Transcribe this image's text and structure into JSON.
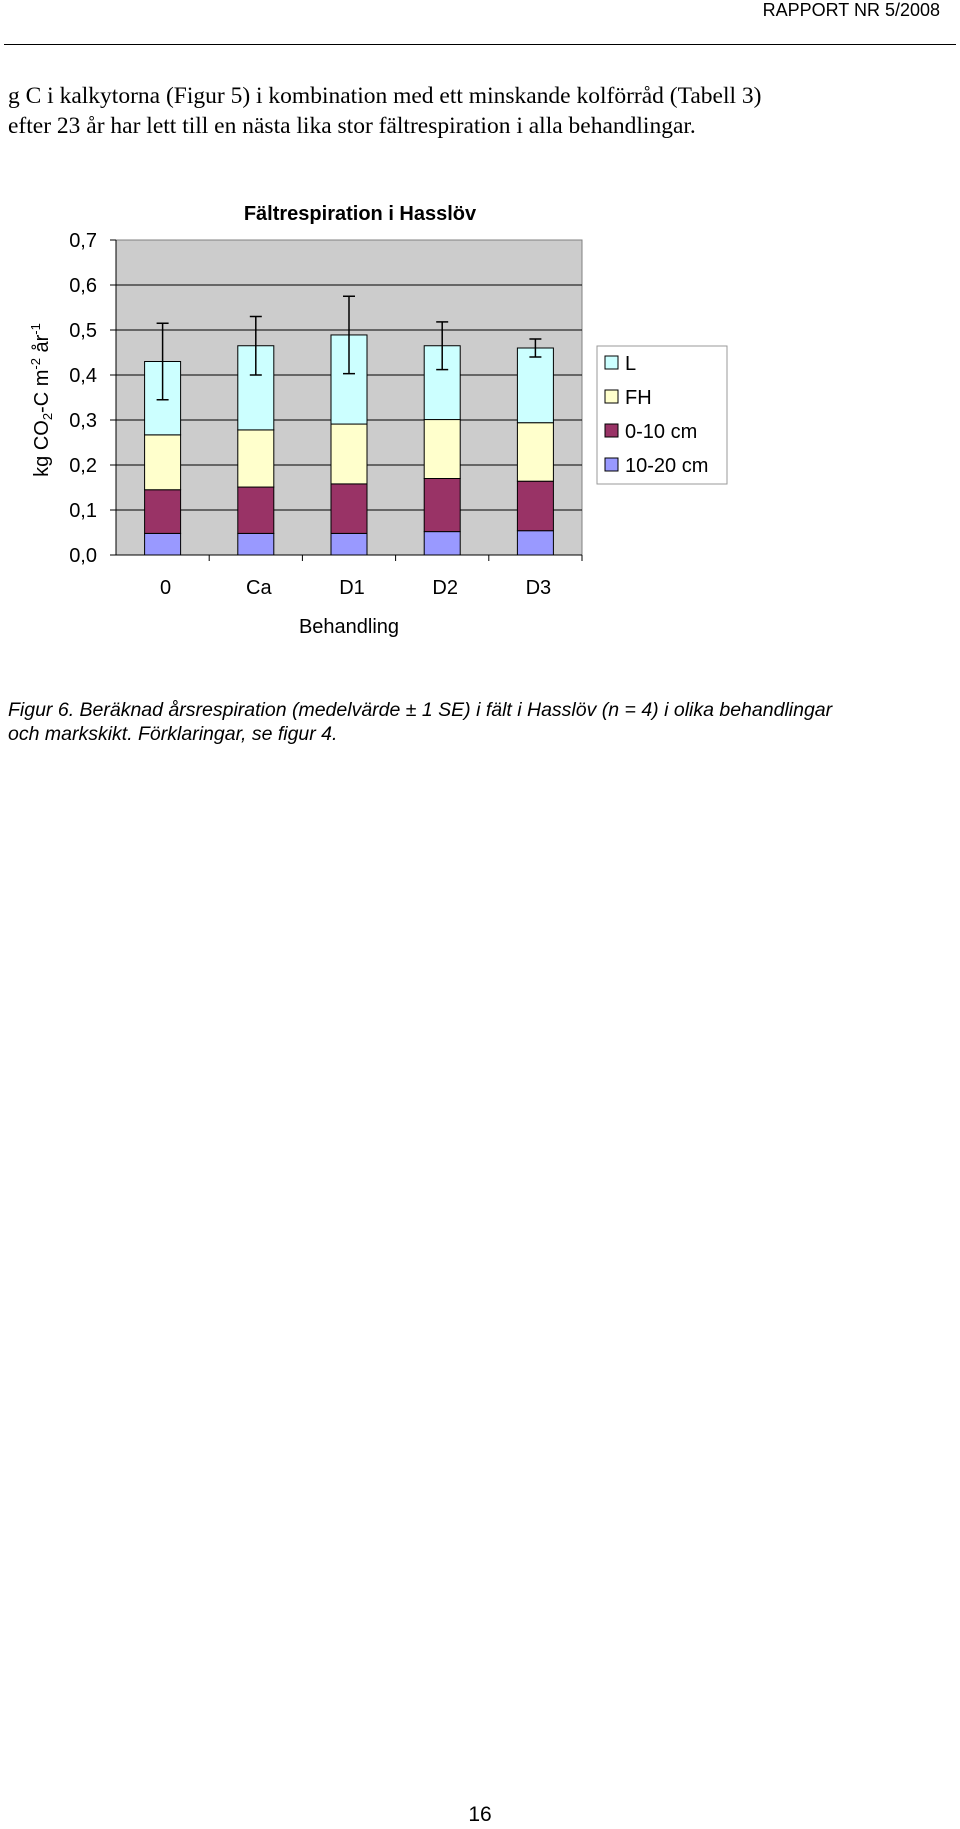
{
  "header": {
    "text": "RAPPORT NR 5/2008"
  },
  "body": {
    "lines": [
      "g C i kalkytorna (Figur 5) i kombination med ett minskande kolförråd (Tabell 3)",
      "efter 23 år har lett till en nästa lika stor fältrespiration i alla behandlingar."
    ]
  },
  "chart_data": {
    "type": "bar",
    "stacked": true,
    "title": "Fältrespiration i Hasslöv",
    "xlabel": "Behandling",
    "ylabel": "kg CO2-C m-2 år-1",
    "ylabel_parts": {
      "a": "kg CO",
      "b": "2",
      "c": "-C m",
      "d": "-2",
      "e": " år",
      "f": "-1"
    },
    "ylim": [
      0,
      0.7
    ],
    "yticks": [
      "0,0",
      "0,1",
      "0,2",
      "0,3",
      "0,4",
      "0,5",
      "0,6",
      "0,7"
    ],
    "categories": [
      "0",
      "Ca",
      "D1",
      "D2",
      "D3"
    ],
    "series": [
      {
        "name": "10-20 cm",
        "color": "#9999ff",
        "values": [
          0.048,
          0.048,
          0.048,
          0.052,
          0.054
        ]
      },
      {
        "name": "0-10 cm",
        "color": "#993366",
        "values": [
          0.097,
          0.103,
          0.11,
          0.118,
          0.11
        ]
      },
      {
        "name": "FH",
        "color": "#ffffcc",
        "values": [
          0.122,
          0.127,
          0.133,
          0.131,
          0.13
        ]
      },
      {
        "name": "L",
        "color": "#ccffff",
        "values": [
          0.163,
          0.187,
          0.198,
          0.164,
          0.166
        ]
      }
    ],
    "error_bars": [
      {
        "total": 0.43,
        "se": 0.085
      },
      {
        "total": 0.465,
        "se": 0.065
      },
      {
        "total": 0.489,
        "se": 0.086
      },
      {
        "total": 0.465,
        "se": 0.053
      },
      {
        "total": 0.46,
        "se": 0.02
      }
    ],
    "legend_order": [
      "L",
      "FH",
      "0-10 cm",
      "10-20 cm"
    ],
    "legend_position": "right",
    "grid": true,
    "plot_background": "#cccccc"
  },
  "caption": {
    "lines": [
      "Figur 6. Beräknad årsrespiration (medelvärde ± 1 SE) i fält i Hasslöv (n = 4) i olika behandlingar",
      "och markskikt. Förklaringar, se figur 4."
    ]
  },
  "footer": {
    "page_number": "16"
  }
}
